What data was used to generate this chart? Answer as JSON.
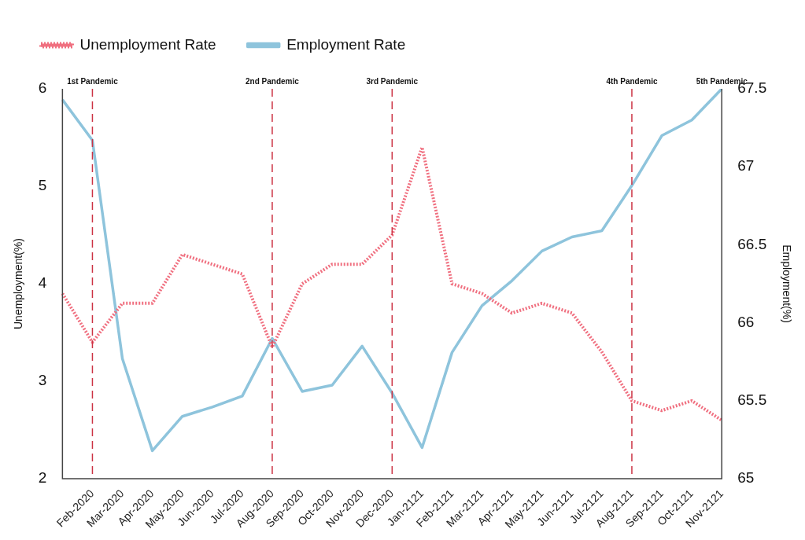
{
  "chart_data": {
    "type": "line",
    "categories": [
      null,
      "Feb-2020",
      "Mar-2020",
      "Apr-2020",
      "May-2020",
      "Jun-2020",
      "Jul-2020",
      "Aug-2020",
      "Sep-2020",
      "Oct-2020",
      "Nov-2020",
      "Dec-2020",
      "Jan-2121",
      "Feb-2121",
      "Mar-2121",
      "Apr-2121",
      "May-2121",
      "Jun-2121",
      "Jul-2121",
      "Aug-2121",
      "Sep-2121",
      "Oct-2121",
      "Nov-2121"
    ],
    "series": [
      {
        "name": "Unemployment Rate",
        "color": "#f07080",
        "line_style": "dotted",
        "values": [
          3.9,
          3.4,
          3.8,
          3.8,
          4.3,
          4.2,
          4.1,
          3.35,
          4.0,
          4.2,
          4.2,
          4.5,
          5.4,
          4.0,
          3.9,
          3.7,
          3.8,
          3.7,
          3.3,
          2.8,
          2.7,
          2.8,
          2.6
        ]
      },
      {
        "name": "Employment Rate",
        "color": "#8ec4dc",
        "line_style": "solid",
        "axis": "y2",
        "values": [
          67.43,
          67.17,
          65.77,
          65.18,
          65.4,
          65.46,
          65.53,
          65.9,
          65.56,
          65.6,
          65.85,
          65.55,
          65.2,
          65.81,
          66.11,
          66.27,
          66.46,
          66.55,
          66.59,
          66.88,
          67.2,
          67.3,
          67.5
        ]
      }
    ],
    "ylabel": "Unemployment(%)",
    "y2label": "Employment(%)",
    "ylim": [
      2,
      6
    ],
    "yticks": [
      2,
      3,
      4,
      5,
      6
    ],
    "y2lim": [
      65,
      67.5
    ],
    "y2ticks": [
      65,
      65.5,
      66,
      66.5,
      67,
      67.5
    ],
    "ref_lines": [
      {
        "axis": "x",
        "value": "Feb-2020",
        "label": "1st Pandemic",
        "color": "#cc3344",
        "line_style": "dashed"
      },
      {
        "axis": "x",
        "value": "Aug-2020",
        "label": "2nd Pandemic",
        "color": "#cc3344",
        "line_style": "dashed"
      },
      {
        "axis": "x",
        "value": "Dec-2020",
        "label": "3rd Pandemic",
        "color": "#cc3344",
        "line_style": "dashed"
      },
      {
        "axis": "x",
        "value": "Aug-2121",
        "label": "4th Pandemic",
        "color": "#cc3344",
        "line_style": "dashed"
      }
    ],
    "annotations": [
      "5th Pandemic"
    ],
    "legend": "top left",
    "grid": false,
    "marker": "none"
  }
}
